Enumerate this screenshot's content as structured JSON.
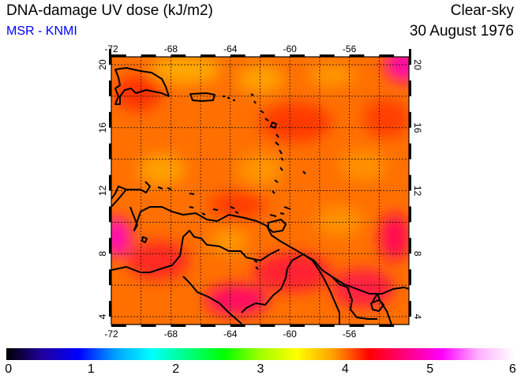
{
  "header": {
    "title": "DNA-damage UV dose (kJ/m2)",
    "credit": "MSR - KNMI",
    "condition": "Clear-sky",
    "date": "30 August 1976"
  },
  "map": {
    "lon_range": [
      -72,
      -52
    ],
    "lat_range": [
      3.5,
      20.5
    ],
    "lon_ticks": [
      "-72",
      "-68",
      "-64",
      "-60",
      "-56"
    ],
    "lat_ticks": [
      "4",
      "8",
      "12",
      "16",
      "20"
    ],
    "gridlines": true,
    "field_color": "#ff7000",
    "coastline_color": "#000000"
  },
  "colorbar": {
    "labels": [
      "0",
      "1",
      "2",
      "3",
      "4",
      "5",
      "6"
    ],
    "range": [
      0,
      6
    ],
    "colors": [
      "#000000",
      "#2000a0",
      "#0000ff",
      "#00a0ff",
      "#00ffff",
      "#00ff80",
      "#00ff00",
      "#a0ff00",
      "#ffff00",
      "#ffa000",
      "#ff0000",
      "#ff0080",
      "#ff00ff",
      "#ffb0ff",
      "#ffffff"
    ]
  }
}
